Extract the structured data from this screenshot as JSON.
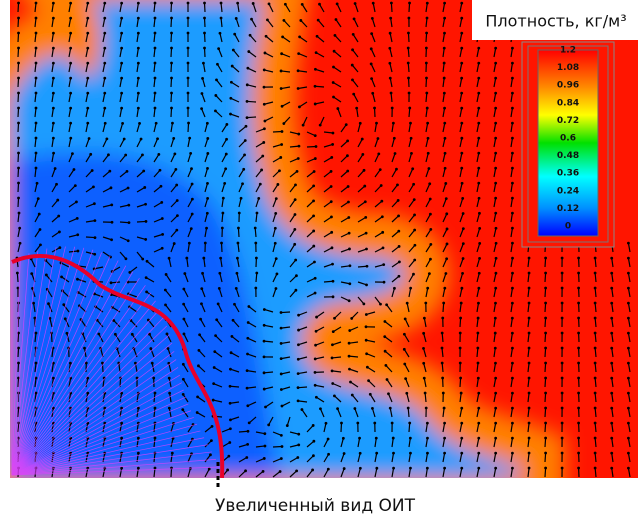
{
  "legend": {
    "title": "Плотность, кг/м³",
    "ticks": [
      "1.2",
      "1.08",
      "0.96",
      "0.84",
      "0.72",
      "0.6",
      "0.48",
      "0.36",
      "0.24",
      "0.12",
      "0"
    ]
  },
  "caption": "Увеличенный вид ОИТ"
}
